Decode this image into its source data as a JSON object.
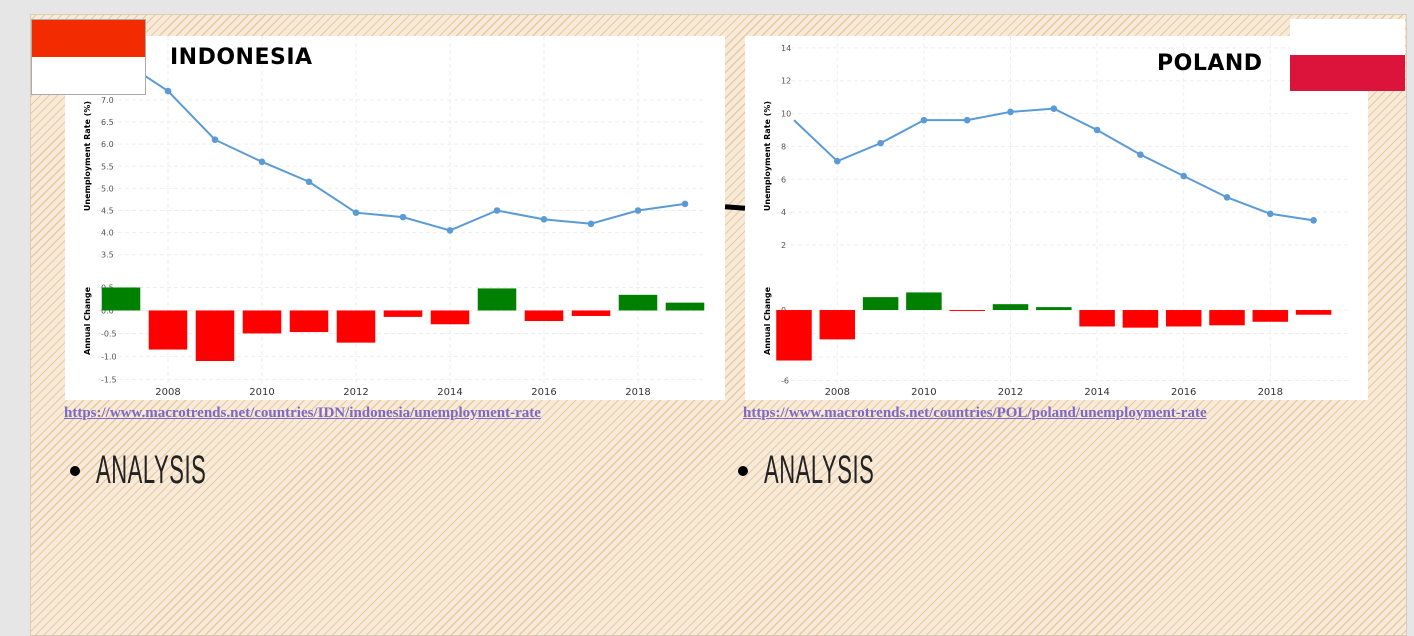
{
  "colors": {
    "line": "#5b9bd5",
    "positive": "#008000",
    "negative": "#ff0000",
    "link": "#7b68c8",
    "indonesia_flag_top": "#f22b00",
    "poland_flag_bottom": "#dc143c"
  },
  "chart_data": [
    {
      "type": "line+bar",
      "country": "INDONESIA",
      "ylabel": "Unemployment Rate (%)",
      "ylabel2": "Annual Change",
      "x": [
        2007,
        2008,
        2009,
        2010,
        2011,
        2012,
        2013,
        2014,
        2015,
        2016,
        2017,
        2018,
        2019
      ],
      "rate": [
        7.9,
        7.2,
        6.1,
        5.6,
        5.15,
        4.45,
        4.35,
        4.05,
        4.5,
        4.3,
        4.2,
        4.5,
        4.65
      ],
      "change": [
        0.5,
        -0.85,
        -1.1,
        -0.5,
        -0.47,
        -0.7,
        -0.14,
        -0.3,
        0.48,
        -0.23,
        -0.12,
        0.34,
        0.17
      ],
      "yticks": [
        "3.5",
        "4.0",
        "4.5",
        "5.0",
        "5.5",
        "6.0",
        "6.5",
        "7.0"
      ],
      "ylim": [
        3.2,
        8.4
      ],
      "y2ticks": [
        "-1.5",
        "-1.0",
        "-0.5",
        "0.0",
        "0.5"
      ],
      "y2lim": [
        -1.6,
        0.75
      ],
      "xticks": [
        "2008",
        "2010",
        "2012",
        "2014",
        "2016",
        "2018"
      ]
    },
    {
      "type": "line+bar",
      "country": "POLAND",
      "ylabel": "Unemployment Rate (%)",
      "ylabel2": "Annual Change",
      "x": [
        2007,
        2008,
        2009,
        2010,
        2011,
        2012,
        2013,
        2014,
        2015,
        2016,
        2017,
        2018,
        2019
      ],
      "rate": [
        9.6,
        7.1,
        8.2,
        9.6,
        9.6,
        10.1,
        10.3,
        9.0,
        7.5,
        6.2,
        4.9,
        3.9,
        3.5
      ],
      "change": [
        -4.3,
        -2.5,
        1.1,
        1.5,
        -0.05,
        0.5,
        0.25,
        -1.4,
        -1.5,
        -1.4,
        -1.3,
        -1.0,
        -0.4
      ],
      "yticks": [
        "2",
        "4",
        "6",
        "8",
        "10",
        "12",
        "14"
      ],
      "ylim": [
        0.6,
        14.6
      ],
      "y2ticks": [
        "-6",
        "-4",
        "-2",
        "0"
      ],
      "y2lim": [
        -6.3,
        2.9
      ],
      "xticks": [
        "2008",
        "2010",
        "2012",
        "2014",
        "2016",
        "2018"
      ]
    }
  ],
  "indonesia": {
    "title": "INDONESIA",
    "link": "https://www.macrotrends.net/countries/IDN/indonesia/unemployment-rate",
    "bullet": "ANALYSIS"
  },
  "poland": {
    "title": "POLAND",
    "link": "https://www.macrotrends.net/countries/POL/poland/unemployment-rate",
    "bullet": "ANALYSIS"
  }
}
